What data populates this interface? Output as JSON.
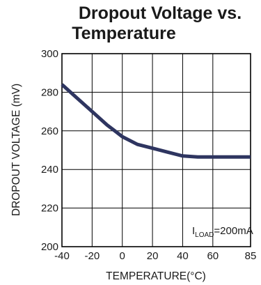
{
  "chart_data": {
    "type": "line",
    "title_lines": [
      "Dropout Voltage vs.",
      "Temperature"
    ],
    "xlabel": "TEMPERATURE(°C)",
    "ylabel": "DROPOUT VOLTAGE (mV)",
    "xlim": [
      -40,
      85
    ],
    "ylim": [
      200,
      300
    ],
    "x_ticks": [
      -40,
      -20,
      0,
      20,
      40,
      60,
      85
    ],
    "x_tick_labels": [
      "-40",
      "-20",
      "0",
      "20",
      "40",
      "60",
      "85"
    ],
    "y_ticks": [
      200,
      220,
      240,
      260,
      280,
      300
    ],
    "y_tick_labels": [
      "200",
      "220",
      "240",
      "260",
      "280",
      "300"
    ],
    "grid": true,
    "annotation": {
      "main": "I",
      "sub": "LOAD",
      "suffix": "=200mA"
    },
    "series": [
      {
        "color": "#2e3560",
        "x": [
          -40,
          -30,
          -20,
          -10,
          -5,
          0,
          10,
          20,
          30,
          40,
          50,
          60,
          70,
          85
        ],
        "y": [
          284,
          277,
          270,
          263,
          260,
          257,
          253,
          251,
          249,
          247,
          246.5,
          246.5,
          246.5,
          246.5
        ]
      }
    ]
  }
}
